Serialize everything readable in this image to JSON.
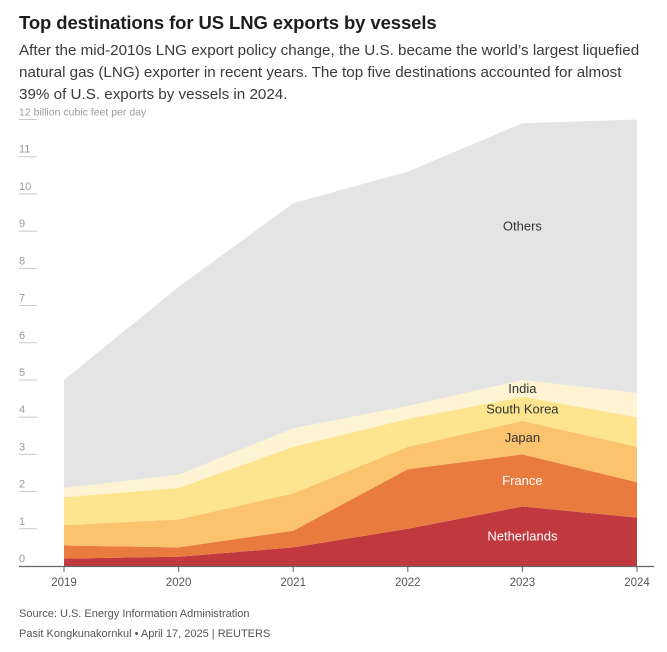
{
  "header": {
    "title": "Top destinations for US LNG exports by vessels",
    "subtitle": "After the mid-2010s LNG export policy change, the U.S. became the world’s largest liquefied natural gas (LNG) exporter in recent years. The top five destinations accounted for almost 39% of U.S. exports by vessels in 2024."
  },
  "footer": {
    "source": "Source: U.S. Energy Information Administration",
    "credit": "Pasit Kongkunakornkul • April 17, 2025 | REUTERS"
  },
  "chart_data": {
    "type": "area",
    "stacked": true,
    "ylabel": "12 billion cubic feet per day",
    "ylim": [
      0,
      12
    ],
    "yticks": [
      "",
      "1",
      "2",
      "3",
      "4",
      "5",
      "6",
      "7",
      "8",
      "9",
      "10",
      "11",
      "12 billion cubic feet per day"
    ],
    "x": [
      "2019",
      "2020",
      "2021",
      "2022",
      "2023",
      "2024"
    ],
    "grid": true,
    "series": [
      {
        "name": "Netherlands",
        "color": "#c0393f",
        "label_color": "#ffffff",
        "values": [
          0.2,
          0.25,
          0.5,
          1.0,
          1.6,
          1.3
        ]
      },
      {
        "name": "France",
        "color": "#e97b3f",
        "label_color": "#ffffff",
        "values": [
          0.35,
          0.25,
          0.45,
          1.6,
          1.4,
          0.95
        ]
      },
      {
        "name": "Japan",
        "color": "#fbc36e",
        "label_color": "#333333",
        "values": [
          0.55,
          0.75,
          1.0,
          0.6,
          0.9,
          0.95
        ]
      },
      {
        "name": "South Korea",
        "color": "#fde48e",
        "label_color": "#333333",
        "values": [
          0.75,
          0.85,
          1.25,
          0.75,
          0.65,
          0.8
        ]
      },
      {
        "name": "India",
        "color": "#fef3d2",
        "label_color": "#333333",
        "values": [
          0.25,
          0.35,
          0.5,
          0.35,
          0.45,
          0.65
        ]
      },
      {
        "name": "Others",
        "color": "#e4e4e4",
        "label_color": "#333333",
        "values": [
          2.9,
          5.05,
          6.05,
          6.3,
          6.9,
          7.35
        ]
      }
    ]
  }
}
